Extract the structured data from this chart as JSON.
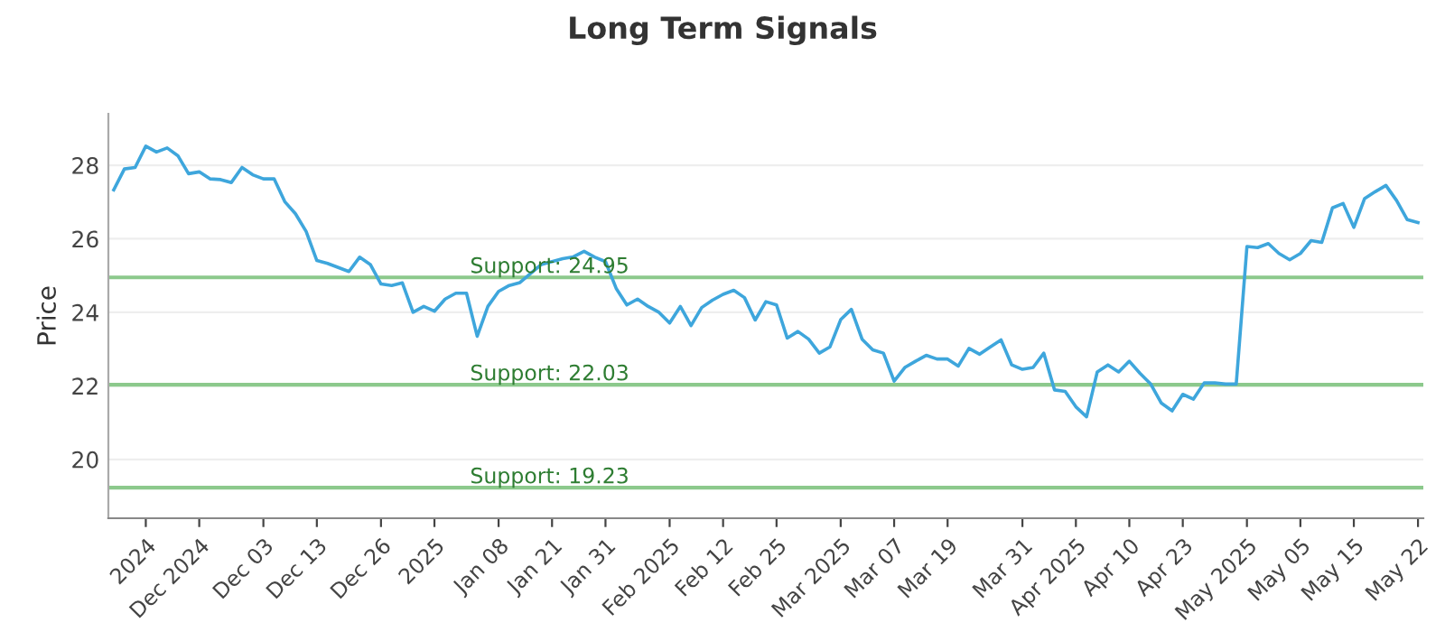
{
  "chart_data": {
    "type": "line",
    "title": "Long Term Signals",
    "ylabel": "Price",
    "categories": [
      null,
      null,
      null,
      "2024",
      null,
      null,
      null,
      null,
      "Dec 2024",
      null,
      null,
      null,
      null,
      null,
      "Dec 03",
      null,
      null,
      null,
      null,
      "Dec 13",
      null,
      null,
      null,
      null,
      null,
      "Dec 26",
      null,
      null,
      null,
      null,
      "2025",
      null,
      null,
      null,
      null,
      null,
      "Jan 08",
      null,
      null,
      null,
      null,
      "Jan 21",
      null,
      null,
      null,
      null,
      "Jan 31",
      null,
      null,
      null,
      null,
      null,
      "Feb 2025",
      null,
      null,
      null,
      null,
      "Feb 12",
      null,
      null,
      null,
      null,
      "Feb 25",
      null,
      null,
      null,
      null,
      null,
      "Mar 2025",
      null,
      null,
      null,
      null,
      "Mar 07",
      null,
      null,
      null,
      null,
      "Mar 19",
      null,
      null,
      null,
      null,
      null,
      null,
      "Mar 31",
      null,
      null,
      null,
      null,
      "Apr 2025",
      null,
      null,
      null,
      null,
      "Apr 10",
      null,
      null,
      null,
      null,
      "Apr 23",
      null,
      null,
      null,
      null,
      null,
      "May 2025",
      null,
      null,
      null,
      null,
      "May 05",
      null,
      null,
      null,
      null,
      "May 15",
      null,
      null,
      null,
      null,
      null,
      "May 22"
    ],
    "series": [
      {
        "color": "#3ea6dc",
        "values": [
          27.33,
          27.9,
          27.94,
          28.52,
          28.36,
          28.47,
          28.26,
          27.77,
          27.82,
          27.63,
          27.61,
          27.53,
          27.94,
          27.74,
          27.63,
          27.63,
          27.01,
          26.68,
          26.2,
          25.41,
          25.33,
          25.22,
          25.11,
          25.5,
          25.3,
          24.77,
          24.73,
          24.8,
          24.0,
          24.16,
          24.03,
          24.36,
          24.52,
          24.52,
          23.35,
          24.16,
          24.57,
          24.73,
          24.81,
          25.06,
          25.3,
          25.38,
          25.46,
          25.51,
          25.66,
          25.5,
          25.38,
          24.65,
          24.2,
          24.36,
          24.16,
          24.0,
          23.71,
          24.16,
          23.64,
          24.13,
          24.33,
          24.49,
          24.6,
          24.4,
          23.79,
          24.29,
          24.2,
          23.3,
          23.48,
          23.27,
          22.89,
          23.06,
          23.8,
          24.08,
          23.27,
          22.98,
          22.89,
          22.13,
          22.5,
          22.67,
          22.83,
          22.73,
          22.73,
          22.54,
          23.02,
          22.86,
          23.06,
          23.25,
          22.57,
          22.45,
          22.5,
          22.89,
          21.89,
          21.85,
          21.43,
          21.16,
          22.38,
          22.57,
          22.38,
          22.67,
          22.34,
          22.05,
          21.53,
          21.32,
          21.77,
          21.64,
          22.08,
          22.08,
          22.05,
          22.05,
          25.79,
          25.76,
          25.87,
          25.6,
          25.43,
          25.6,
          25.95,
          25.9,
          26.84,
          26.96,
          26.31,
          27.09,
          27.28,
          27.45,
          27.04,
          26.52,
          26.44
        ]
      }
    ],
    "ylim": [
      18.4,
      29.4
    ],
    "yticks": [
      20,
      22,
      24,
      26,
      28
    ],
    "grid": "y",
    "ref_lines": [
      {
        "axis": "y",
        "value": 24.95,
        "label": "Support: 24.95",
        "color": "#8cc98c"
      },
      {
        "axis": "y",
        "value": 22.03,
        "label": "Support: 22.03",
        "color": "#8cc98c"
      },
      {
        "axis": "y",
        "value": 19.23,
        "label": "Support: 19.23",
        "color": "#8cc98c"
      }
    ]
  }
}
